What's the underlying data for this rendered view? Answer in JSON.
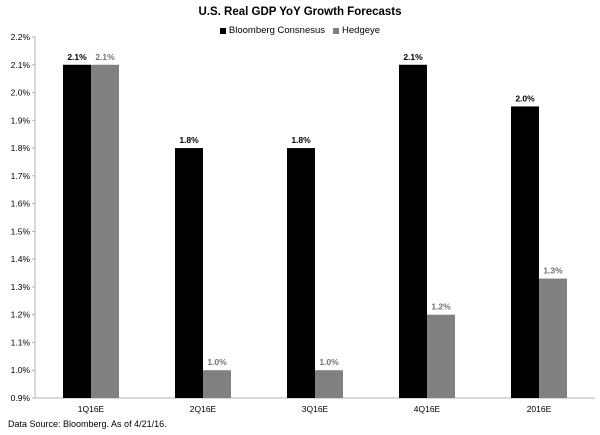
{
  "chart_data": {
    "type": "bar",
    "title": "U.S. Real GDP YoY Growth Forecasts",
    "categories": [
      "1Q16E",
      "2Q16E",
      "3Q16E",
      "4Q16E",
      "2016E"
    ],
    "series": [
      {
        "name": "Bloomberg Consnesus",
        "color": "#000000",
        "values": [
          2.1,
          1.8,
          1.8,
          2.1,
          1.95
        ],
        "labels": [
          "2.1%",
          "1.8%",
          "1.8%",
          "2.1%",
          "2.0%"
        ]
      },
      {
        "name": "Hedgeye",
        "color": "#808080",
        "values": [
          2.1,
          1.0,
          1.0,
          1.2,
          1.33
        ],
        "labels": [
          "2.1%",
          "1.0%",
          "1.0%",
          "1.2%",
          "1.3%"
        ]
      }
    ],
    "ylim": [
      0.9,
      2.2
    ],
    "yticks": [
      "0.9%",
      "1.0%",
      "1.1%",
      "1.2%",
      "1.3%",
      "1.4%",
      "1.5%",
      "1.6%",
      "1.7%",
      "1.8%",
      "1.9%",
      "2.0%",
      "2.1%",
      "2.2%"
    ],
    "xlabel": "",
    "ylabel": "",
    "grid": false,
    "legend_position": "top-center"
  },
  "footnote": "Data Source: Bloomberg. As of 4/21/16."
}
